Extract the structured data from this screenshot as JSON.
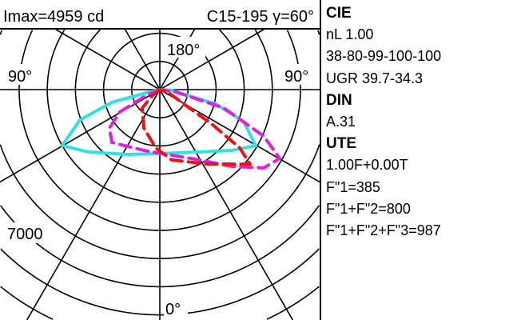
{
  "header": {
    "imax": "Imax=4959 cd",
    "plane": "C15-195 γ=60°"
  },
  "side": {
    "lines": [
      {
        "text": "CIE",
        "bold": true
      },
      {
        "text": "nL 1.00",
        "bold": false
      },
      {
        "text": "38-80-99-100-100",
        "bold": false
      },
      {
        "text": "UGR  39.7-34.3",
        "bold": false
      },
      {
        "text": "DIN",
        "bold": true
      },
      {
        "text": "A.31",
        "bold": false
      },
      {
        "text": "UTE",
        "bold": true
      },
      {
        "text": "1.00F+0.00T",
        "bold": false
      },
      {
        "text": "F\"1=385",
        "bold": false
      },
      {
        "text": "F\"1+F\"2=800",
        "bold": false
      },
      {
        "text": "F\"1+F\"2+F\"3=987",
        "bold": false
      }
    ]
  },
  "chart_data": {
    "type": "polar",
    "title": "",
    "angle_labels": {
      "top": "180°",
      "left": "90°",
      "right": "90°",
      "bottom": "0°"
    },
    "radial_label": "7000",
    "radial_step_cd": 1000,
    "angle_step_deg": 30,
    "grid": true,
    "series": [
      {
        "color": "#33e0e0",
        "style": "solid",
        "points": [
          [
            -90,
            0
          ],
          [
            -76.8,
            497
          ],
          [
            -75.1,
            1764
          ],
          [
            -69.2,
            3040
          ],
          [
            -60.2,
            3997
          ],
          [
            -49.1,
            3381
          ],
          [
            -26.3,
            2566
          ],
          [
            0,
            2273
          ],
          [
            32.7,
            2631
          ],
          [
            49.8,
            3347
          ],
          [
            59.7,
            3949
          ],
          [
            69.1,
            3193
          ],
          [
            75.6,
            2053
          ],
          [
            86,
            427
          ],
          [
            90,
            0
          ]
        ]
      },
      {
        "color": "#e020e0",
        "style": "dashed",
        "points": [
          [
            -90,
            0
          ],
          [
            -68.2,
            459
          ],
          [
            -60.8,
            1628
          ],
          [
            -52.7,
            2250
          ],
          [
            -42.3,
            2534
          ],
          [
            -14.7,
            2233
          ],
          [
            29.6,
            2875
          ],
          [
            43.2,
            3739
          ],
          [
            53,
            4625
          ],
          [
            60.2,
            4912
          ],
          [
            65.9,
            4045
          ],
          [
            74,
            2364
          ],
          [
            81.5,
            574
          ],
          [
            90,
            0
          ]
        ]
      },
      {
        "color": "#ee1111",
        "style": "dashed",
        "points": [
          [
            -60,
            0
          ],
          [
            -51.3,
            364
          ],
          [
            -43.7,
            904
          ],
          [
            -22.6,
            1477
          ],
          [
            -3.9,
            2079
          ],
          [
            9.7,
            2536
          ],
          [
            32.8,
            3145
          ],
          [
            50.5,
            4157
          ],
          [
            53.9,
            3517
          ],
          [
            56.5,
            2214
          ],
          [
            59,
            994
          ],
          [
            73.3,
            296
          ],
          [
            90,
            0
          ]
        ]
      }
    ]
  }
}
